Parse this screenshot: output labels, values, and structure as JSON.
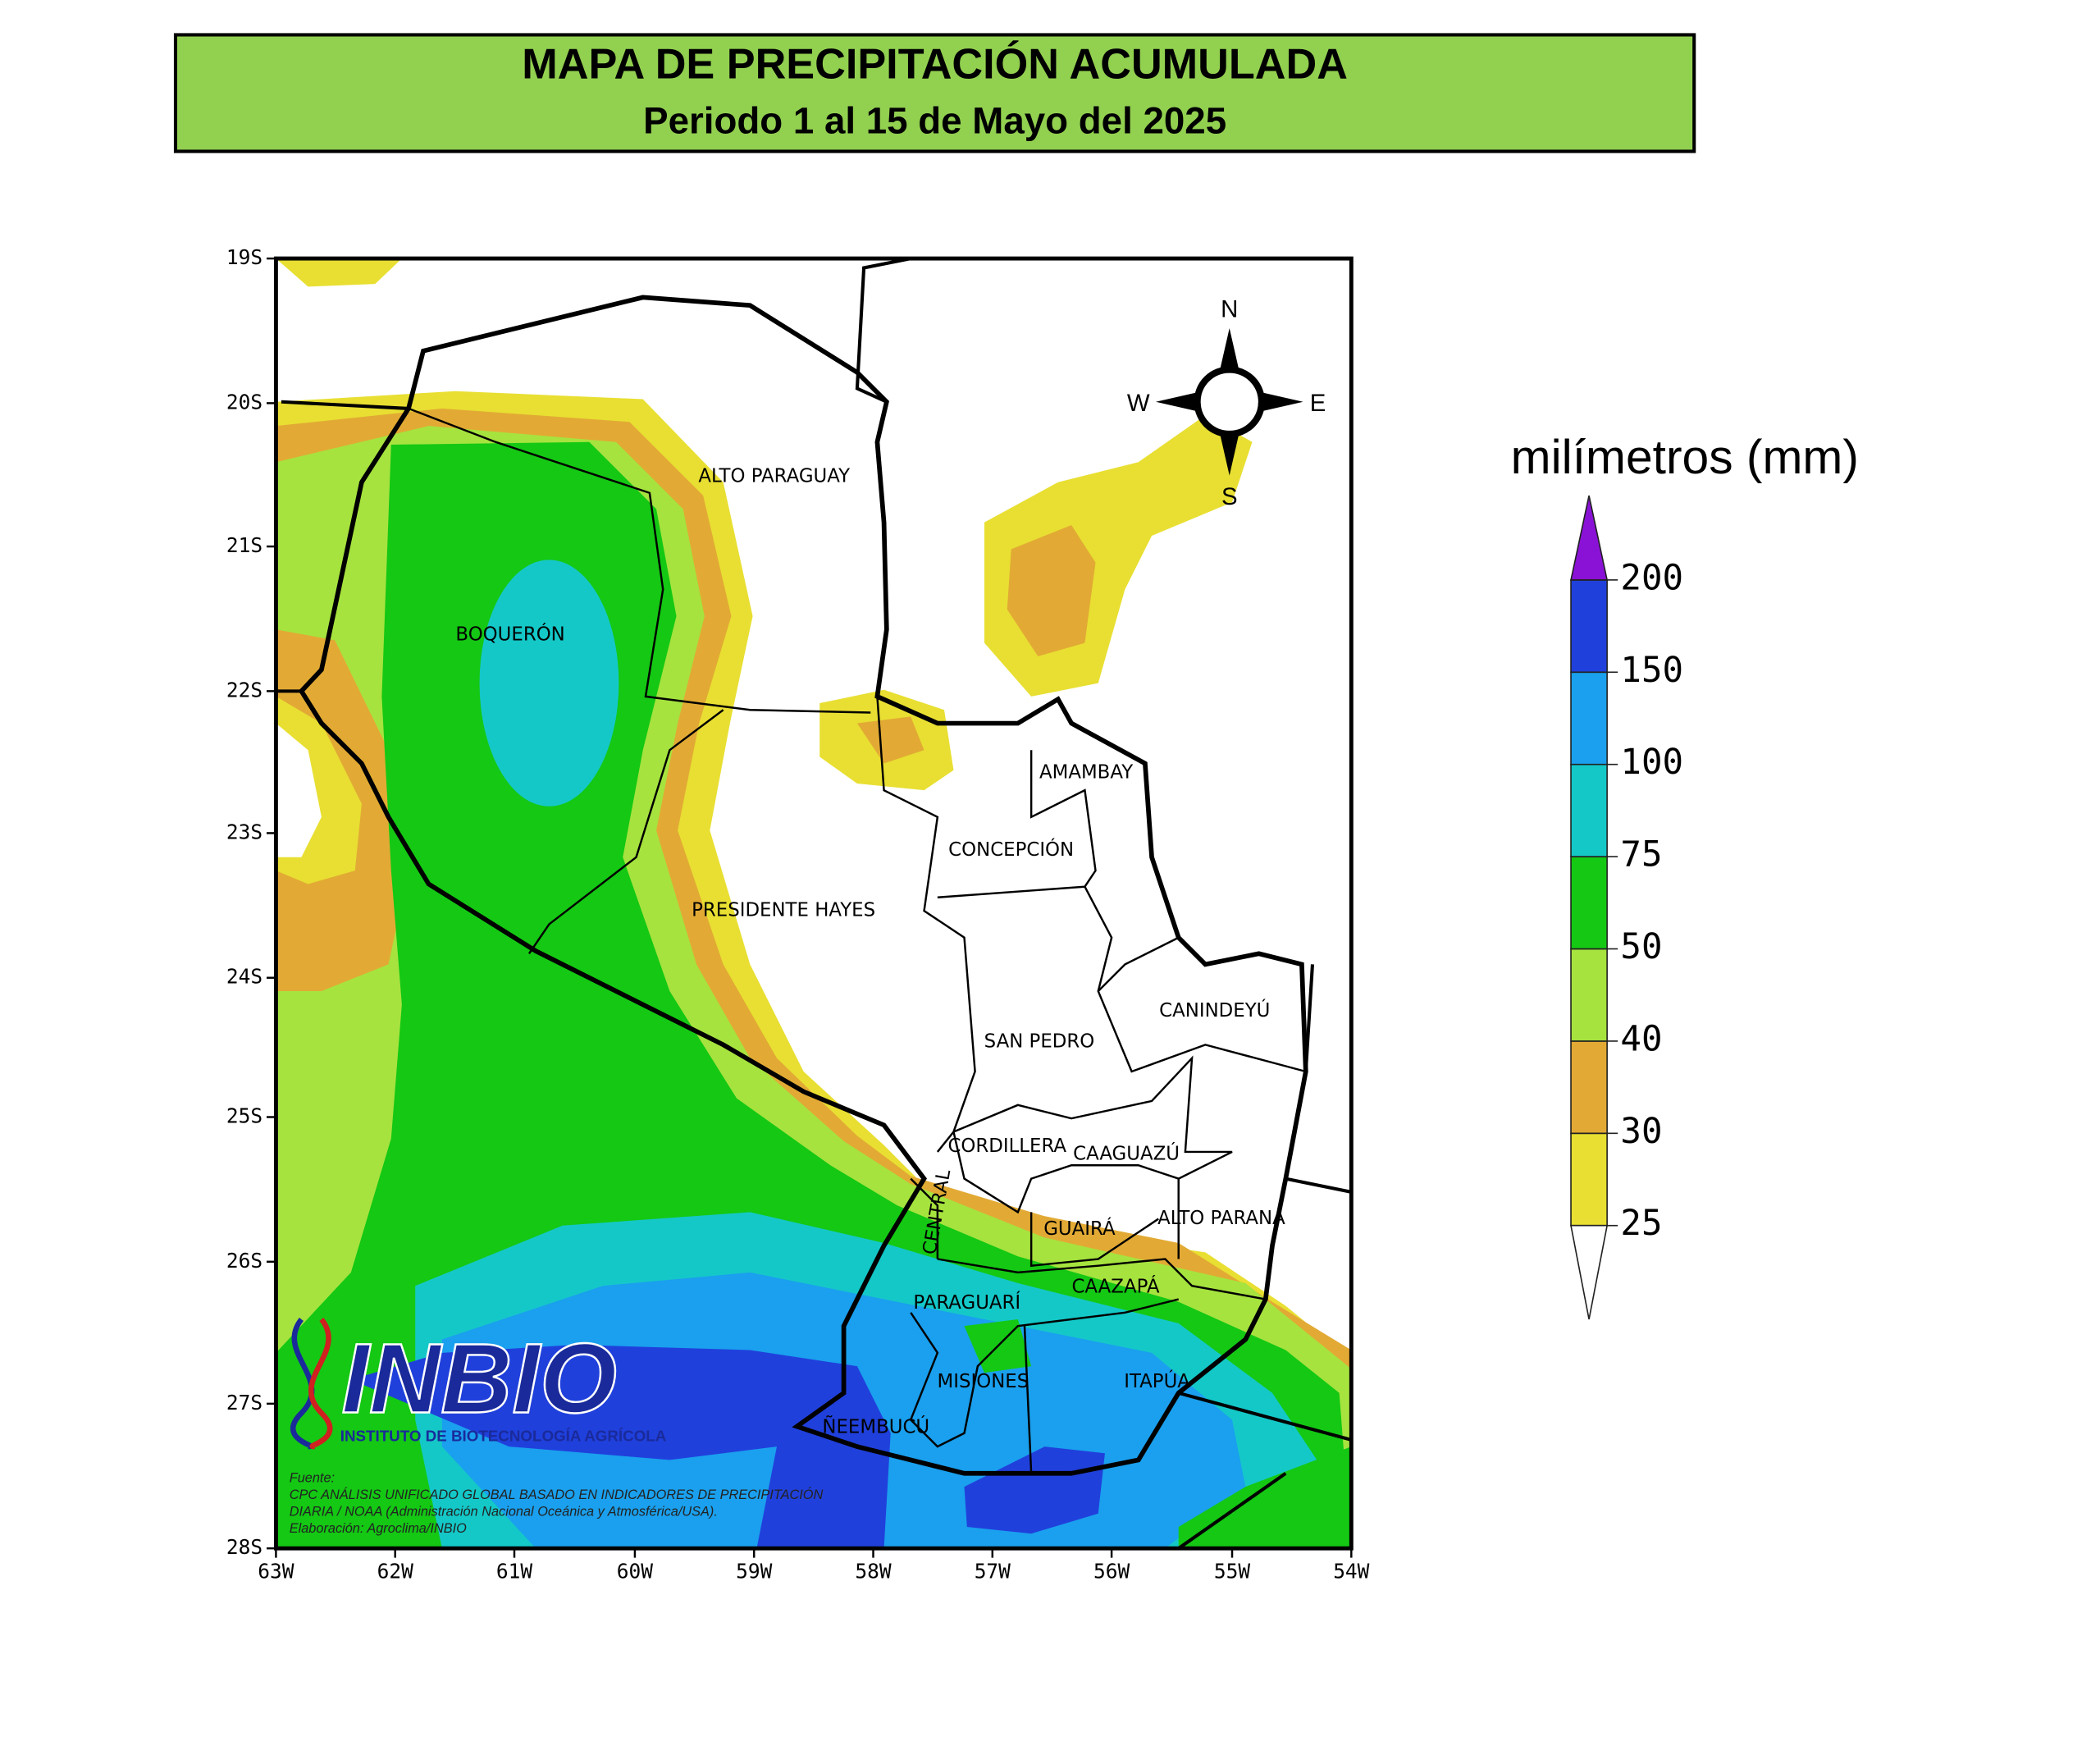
{
  "header": {
    "title": "MAPA DE PRECIPITACIÓN ACUMULADA",
    "subtitle": "Periodo 1 al 15 de Mayo del 2025"
  },
  "map": {
    "lat_ticks": [
      "19S",
      "20S",
      "21S",
      "22S",
      "23S",
      "24S",
      "25S",
      "26S",
      "27S",
      "28S"
    ],
    "lon_ticks": [
      "63W",
      "62W",
      "61W",
      "60W",
      "59W",
      "58W",
      "57W",
      "56W",
      "55W",
      "54W"
    ],
    "regions": [
      "ALTO PARAGUAY",
      "BOQUERÓN",
      "PRESIDENTE HAYES",
      "AMAMBAY",
      "CONCEPCIÓN",
      "SAN PEDRO",
      "CANINDEYÚ",
      "CORDILLERA",
      "CAAGUAZÚ",
      "CENTRAL",
      "GUAIRÁ",
      "ALTO PARANÁ",
      "CAAZAPÁ",
      "PARAGUARÍ",
      "MISIONES",
      "ITAPÚA",
      "ÑEEMBUCÚ"
    ],
    "compass": {
      "north": "N",
      "south": "S",
      "west": "W",
      "east": "E"
    }
  },
  "legend": {
    "title": "milímetros (mm)",
    "levels": [
      25,
      30,
      40,
      50,
      75,
      100,
      150,
      200
    ],
    "colors": [
      "#e8df32",
      "#e2aa34",
      "#a6e33e",
      "#14c814",
      "#14c8c8",
      "#1aa0ee",
      "#2040dc"
    ],
    "under_color": "#ffffff",
    "over_color": "#8a12d6"
  },
  "logo": {
    "name": "INBIO",
    "subtitle": "INSTITUTO DE BIOTECNOLOGÍA AGRÍCOLA"
  },
  "source": {
    "lines": [
      "Fuente:",
      "CPC ANÁLISIS UNIFICADO GLOBAL BASADO EN INDICADORES DE PRECIPITACIÓN",
      "DIARIA / NOAA (Administración Nacional Oceánica y Atmosférica/USA).",
      "Elaboración: Agroclima/INBIO"
    ]
  }
}
